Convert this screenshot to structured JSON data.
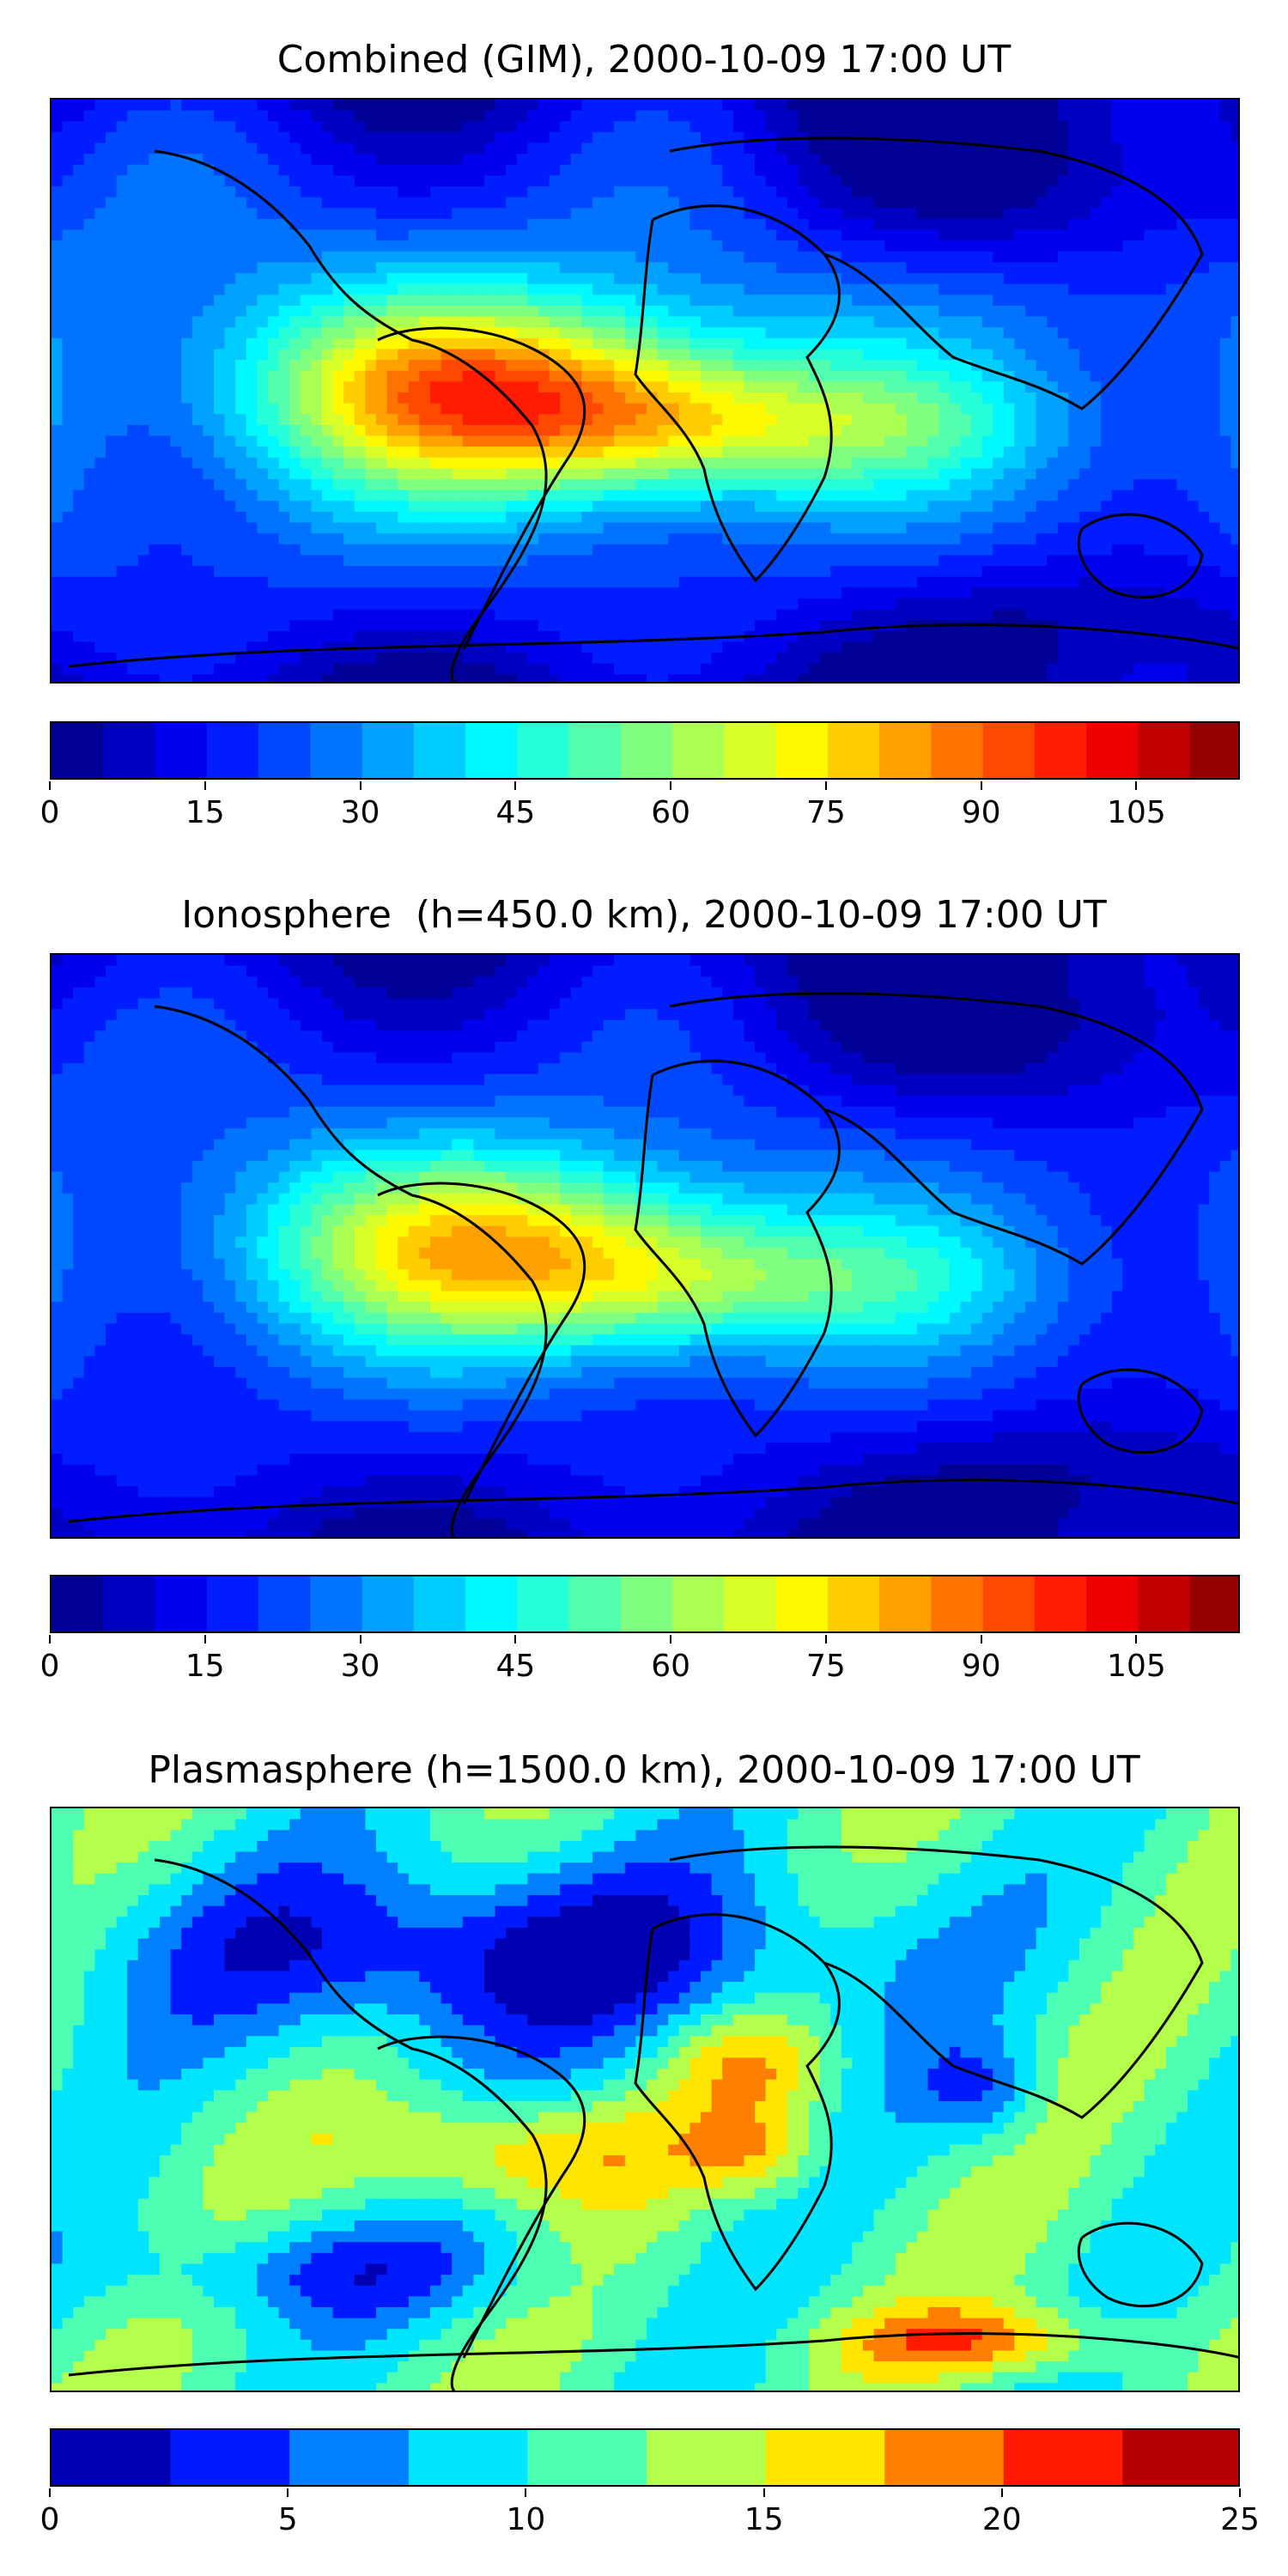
{
  "panels": [
    {
      "title": "Combined (GIM), 2000-10-09 17:00 UT",
      "colorbar": {
        "vmin": 0,
        "vmax": 115,
        "levels": 23,
        "ticks": [
          0,
          15,
          30,
          45,
          60,
          75,
          90,
          105
        ]
      },
      "field_scale": 1.0
    },
    {
      "title": "Ionosphere  (h=450.0 km), 2000-10-09 17:00 UT",
      "colorbar": {
        "vmin": 0,
        "vmax": 115,
        "levels": 23,
        "ticks": [
          0,
          15,
          30,
          45,
          60,
          75,
          90,
          105
        ]
      },
      "field_scale": 0.85
    },
    {
      "title": "Plasmasphere (h=1500.0 km), 2000-10-09 17:00 UT",
      "colorbar": {
        "vmin": 0,
        "vmax": 25,
        "levels": 10,
        "ticks": [
          0,
          5,
          10,
          15,
          20,
          25
        ]
      },
      "field_scale": 0.2
    }
  ],
  "colormap": "jet",
  "coastline_color": "#000000"
}
